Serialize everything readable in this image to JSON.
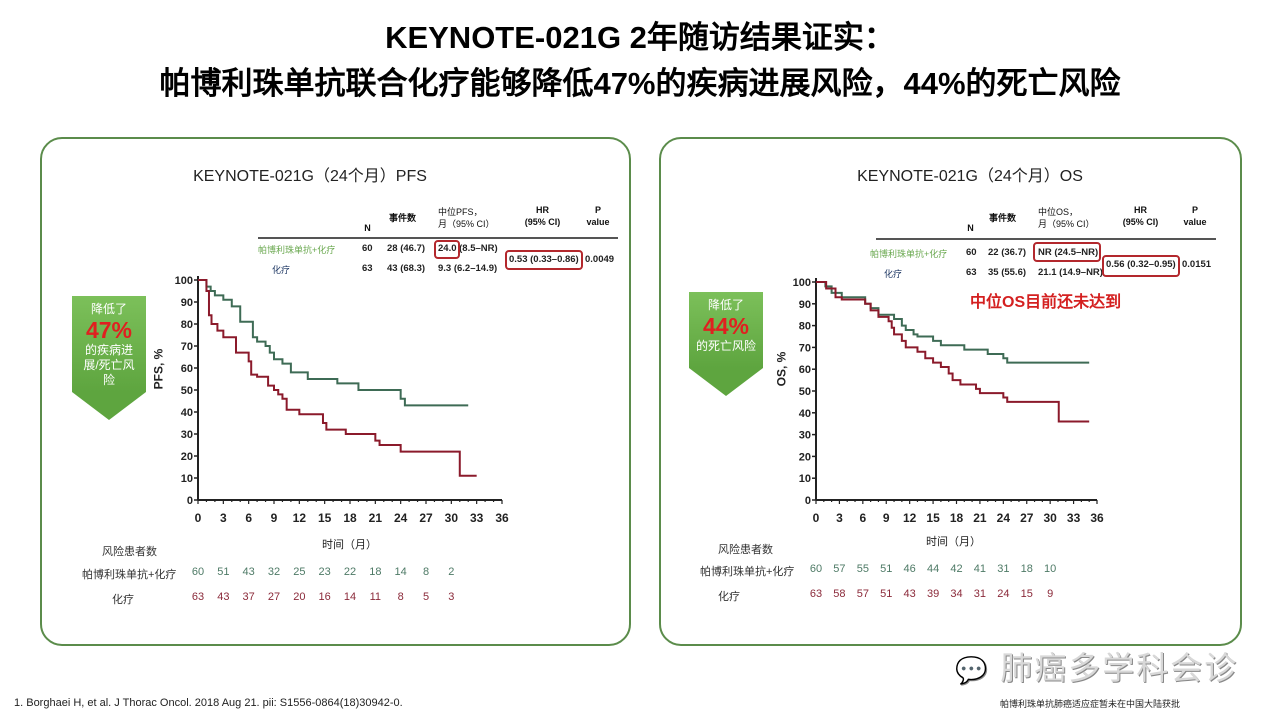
{
  "title": {
    "line1": "KEYNOTE-021G 2年随访结果证实：",
    "line2": "帕博利珠单抗联合化疗能够降低47%的疾病进展风险，44%的死亡风险"
  },
  "colors": {
    "pembro": "#3e6b55",
    "chemo": "#8b1a2b",
    "accent_red": "#b3282d",
    "panel_border": "#5b8c4b",
    "badge_green": "#6ab04c"
  },
  "pfs_panel": {
    "title": "KEYNOTE-021G（24个月）PFS",
    "table": {
      "headers": [
        "N",
        "事件数",
        "中位PFS，\n月（95% CI）",
        "HR\n(95% CI)",
        "P\nvalue"
      ],
      "rows": [
        {
          "label": "帕博利珠单抗+化疗",
          "n": "60",
          "events": "28 (46.7)",
          "median": "24.0 (8.5–NR)"
        },
        {
          "label": "化疗",
          "n": "63",
          "events": "43 (68.3)",
          "median": "9.3 (6.2–14.9)"
        }
      ],
      "hr": "0.53 (0.33–0.86)",
      "p": "0.0049"
    },
    "badge": {
      "top": "降低了",
      "pct": "47%",
      "bottom": "的疾病进展/死亡风险"
    },
    "risk": {
      "header": "风险患者数",
      "rows": [
        {
          "label": "帕博利珠单抗+化疗",
          "values": [
            "60",
            "51",
            "43",
            "32",
            "25",
            "23",
            "22",
            "18",
            "14",
            "8",
            "2"
          ]
        },
        {
          "label": "化疗",
          "values": [
            "63",
            "43",
            "37",
            "27",
            "20",
            "16",
            "14",
            "11",
            "8",
            "5",
            "3"
          ]
        }
      ]
    }
  },
  "os_panel": {
    "title": "KEYNOTE-021G（24个月）OS",
    "table": {
      "headers": [
        "N",
        "事件数",
        "中位OS，\n月（95% CI）",
        "HR\n(95% CI)",
        "P\nvalue"
      ],
      "rows": [
        {
          "label": "帕博利珠单抗+化疗",
          "n": "60",
          "events": "22 (36.7)",
          "median": "NR (24.5–NR)"
        },
        {
          "label": "化疗",
          "n": "63",
          "events": "35 (55.6)",
          "median": "21.1 (14.9–NR)"
        }
      ],
      "hr": "0.56 (0.32–0.95)",
      "p": "0.0151"
    },
    "annotation": "中位OS目前还未达到",
    "badge": {
      "top": "降低了",
      "pct": "44%",
      "bottom": "的死亡风险"
    },
    "risk": {
      "header": "风险患者数",
      "rows": [
        {
          "label": "帕博利珠单抗+化疗",
          "values": [
            "60",
            "57",
            "55",
            "51",
            "46",
            "44",
            "42",
            "41",
            "31",
            "18",
            "10"
          ]
        },
        {
          "label": "化疗",
          "values": [
            "63",
            "58",
            "57",
            "51",
            "43",
            "39",
            "34",
            "31",
            "24",
            "15",
            "9"
          ]
        }
      ]
    }
  },
  "chart_data": [
    {
      "type": "line",
      "title": "KEYNOTE-021G（24个月）PFS",
      "xlabel": "时间（月）",
      "ylabel": "PFS, %",
      "xlim": [
        0,
        36
      ],
      "ylim": [
        0,
        100
      ],
      "xticks": [
        "0",
        "3",
        "6",
        "9",
        "12",
        "15",
        "18",
        "21",
        "24",
        "27",
        "30",
        "33",
        "36"
      ],
      "yticks": [
        "0",
        "10",
        "20",
        "30",
        "40",
        "50",
        "60",
        "70",
        "80",
        "90",
        "100"
      ],
      "series": [
        {
          "name": "帕博利珠单抗+化疗",
          "step": true,
          "points": [
            [
              0,
              100
            ],
            [
              1,
              97
            ],
            [
              1.5,
              95
            ],
            [
              2,
              93
            ],
            [
              3,
              91
            ],
            [
              4,
              88
            ],
            [
              5,
              81
            ],
            [
              6.5,
              74
            ],
            [
              7,
              72
            ],
            [
              8,
              70
            ],
            [
              8.5,
              67
            ],
            [
              9,
              64
            ],
            [
              10,
              62
            ],
            [
              11,
              58
            ],
            [
              13,
              55
            ],
            [
              16.5,
              53
            ],
            [
              19,
              50
            ],
            [
              24,
              46
            ],
            [
              24.5,
              43
            ],
            [
              32,
              43
            ]
          ]
        },
        {
          "name": "化疗",
          "step": true,
          "points": [
            [
              0,
              100
            ],
            [
              1,
              95
            ],
            [
              1.3,
              84
            ],
            [
              1.6,
              80
            ],
            [
              2.3,
              77
            ],
            [
              3,
              74
            ],
            [
              4.5,
              67
            ],
            [
              6,
              63
            ],
            [
              6.3,
              57
            ],
            [
              7,
              56
            ],
            [
              8.3,
              52
            ],
            [
              9,
              50
            ],
            [
              9.5,
              48
            ],
            [
              10,
              46
            ],
            [
              10.5,
              41
            ],
            [
              12,
              39
            ],
            [
              14.8,
              35
            ],
            [
              15.2,
              32
            ],
            [
              17.5,
              30
            ],
            [
              21,
              27
            ],
            [
              21.5,
              25
            ],
            [
              24,
              22
            ],
            [
              31,
              11
            ],
            [
              33,
              11
            ]
          ]
        }
      ]
    },
    {
      "type": "line",
      "title": "KEYNOTE-021G（24个月）OS",
      "xlabel": "时间（月）",
      "ylabel": "OS, %",
      "xlim": [
        0,
        36
      ],
      "ylim": [
        0,
        100
      ],
      "xticks": [
        "0",
        "3",
        "6",
        "9",
        "12",
        "15",
        "18",
        "21",
        "24",
        "27",
        "30",
        "33",
        "36"
      ],
      "yticks": [
        "0",
        "10",
        "20",
        "30",
        "40",
        "50",
        "60",
        "70",
        "80",
        "90",
        "100"
      ],
      "series": [
        {
          "name": "帕博利珠单抗+化疗",
          "step": true,
          "points": [
            [
              0,
              100
            ],
            [
              1.2,
              98
            ],
            [
              2,
              95
            ],
            [
              3.3,
              93
            ],
            [
              6.3,
              90
            ],
            [
              7,
              88
            ],
            [
              8,
              85
            ],
            [
              10,
              83
            ],
            [
              11,
              80
            ],
            [
              11.5,
              78
            ],
            [
              12.5,
              76
            ],
            [
              13,
              75
            ],
            [
              15,
              73
            ],
            [
              16,
              71
            ],
            [
              19,
              69
            ],
            [
              22,
              67
            ],
            [
              24,
              65
            ],
            [
              24.5,
              63
            ],
            [
              35,
              63
            ]
          ]
        },
        {
          "name": "化疗",
          "step": true,
          "points": [
            [
              0,
              100
            ],
            [
              1.3,
              97
            ],
            [
              2.5,
              93
            ],
            [
              3.3,
              92
            ],
            [
              6.3,
              90
            ],
            [
              7,
              87
            ],
            [
              8,
              84
            ],
            [
              9.3,
              82
            ],
            [
              9.7,
              79
            ],
            [
              10,
              76
            ],
            [
              11,
              73
            ],
            [
              11.5,
              70
            ],
            [
              13,
              68
            ],
            [
              14,
              65
            ],
            [
              15,
              63
            ],
            [
              16,
              61
            ],
            [
              17,
              58
            ],
            [
              17.5,
              55
            ],
            [
              18.5,
              53
            ],
            [
              20.5,
              51
            ],
            [
              21,
              49
            ],
            [
              24,
              47
            ],
            [
              24.5,
              45
            ],
            [
              31,
              45
            ],
            [
              31.1,
              36
            ],
            [
              35,
              36
            ]
          ]
        }
      ]
    }
  ],
  "footnote": "1.   Borghaei H, et al. J Thorac  Oncol. 2018 Aug 21. pii: S1556-0864(18)30942-0.",
  "disclaimer": "帕博利珠单抗肺癌适应症暂未在中国大陆获批",
  "watermark": "肺癌多学科会诊"
}
